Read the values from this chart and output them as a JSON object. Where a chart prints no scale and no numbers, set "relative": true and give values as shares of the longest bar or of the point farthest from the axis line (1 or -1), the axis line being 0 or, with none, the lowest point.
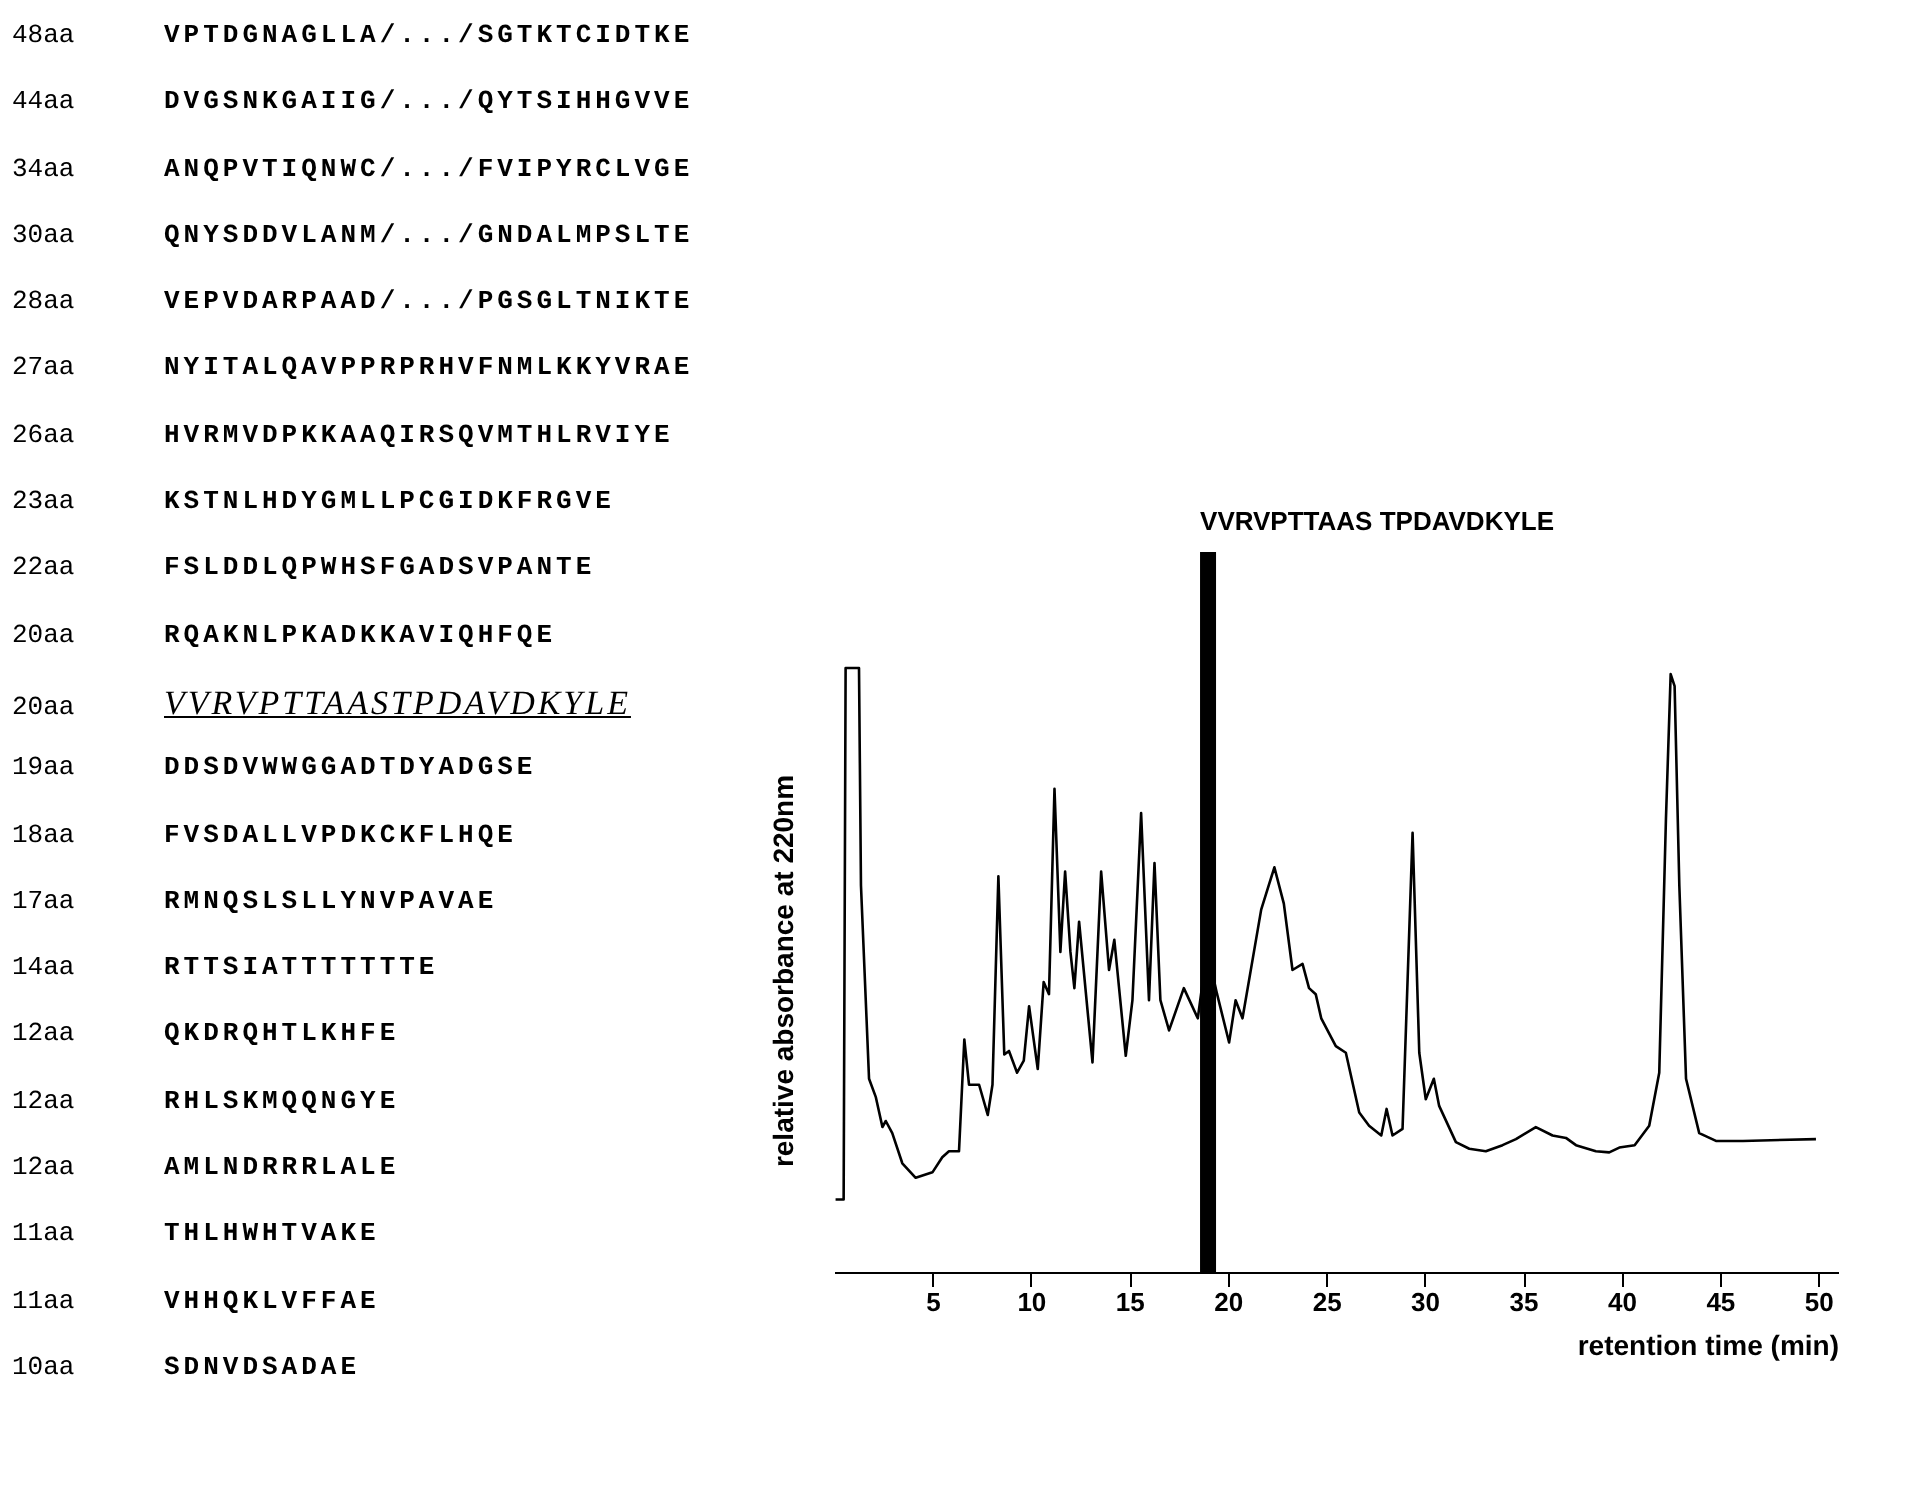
{
  "chart_data": {
    "type": "line",
    "relative": true,
    "xlabel": "retention time (min)",
    "ylabel": "relative absorbance at 220nm",
    "xlim": [
      0,
      51
    ],
    "xticks": [
      5,
      10,
      15,
      20,
      25,
      30,
      35,
      40,
      45,
      50
    ],
    "x": [
      0.08,
      0.49,
      0.59,
      1.27,
      1.37,
      1.78,
      2.12,
      2.46,
      2.63,
      2.96,
      3.47,
      4.15,
      5.0,
      5.5,
      5.84,
      6.35,
      6.62,
      6.86,
      7.37,
      7.81,
      8.05,
      8.35,
      8.65,
      8.89,
      9.3,
      9.64,
      9.91,
      10.35,
      10.65,
      10.92,
      11.2,
      11.5,
      11.74,
      12.01,
      12.21,
      12.45,
      13.13,
      13.57,
      13.97,
      14.24,
      14.82,
      15.16,
      15.6,
      16.0,
      16.28,
      16.58,
      17.02,
      17.77,
      18.48,
      18.95,
      19.46,
      20.07,
      20.4,
      20.75,
      21.7,
      22.37,
      22.85,
      23.29,
      23.8,
      24.13,
      24.47,
      24.75,
      25.49,
      26.0,
      26.68,
      27.18,
      27.8,
      28.07,
      28.37,
      28.88,
      29.39,
      29.73,
      30.06,
      30.47,
      30.74,
      31.59,
      32.27,
      33.11,
      33.96,
      34.64,
      35.65,
      36.5,
      37.18,
      37.69,
      38.7,
      39.38,
      39.89,
      40.67,
      41.41,
      41.92,
      42.26,
      42.5,
      42.7,
      42.94,
      43.28,
      43.95,
      44.8,
      46.17,
      49.88
    ],
    "series": [
      {
        "color": "#000000",
        "values": [
          0.12,
          0.12,
          1,
          1,
          0.64,
          0.32,
          0.29,
          0.24,
          0.25,
          0.23,
          0.18,
          0.156,
          0.165,
          0.19,
          0.2,
          0.2,
          0.385,
          0.31,
          0.31,
          0.26,
          0.31,
          0.655,
          0.36,
          0.366,
          0.33,
          0.35,
          0.44,
          0.336,
          0.48,
          0.46,
          0.8,
          0.53,
          0.663,
          0.53,
          0.47,
          0.58,
          0.347,
          0.663,
          0.5,
          0.55,
          0.358,
          0.45,
          0.76,
          0.45,
          0.677,
          0.45,
          0.4,
          0.47,
          0.42,
          0.534,
          0.46,
          0.38,
          0.45,
          0.42,
          0.6,
          0.67,
          0.61,
          0.5,
          0.51,
          0.47,
          0.46,
          0.42,
          0.374,
          0.363,
          0.264,
          0.242,
          0.226,
          0.27,
          0.226,
          0.237,
          0.727,
          0.363,
          0.286,
          0.32,
          0.275,
          0.215,
          0.204,
          0.2,
          0.21,
          0.22,
          0.24,
          0.226,
          0.222,
          0.21,
          0.2,
          0.198,
          0.206,
          0.21,
          0.242,
          0.33,
          0.75,
          0.99,
          0.97,
          0.64,
          0.32,
          0.23,
          0.217,
          0.217,
          0.22
        ]
      }
    ],
    "ref_lines": [
      {
        "axis": "x",
        "value": 19,
        "label": "VVRVPTTAAS TPDAVDKYLE",
        "color": "#000000"
      }
    ],
    "annotations": [
      "48aa VPTDGNAGLLA/.../SGTKTCIDTKE",
      "44aa DVGSNKGAIIG/.../QYTSIHHGVVE",
      "34aa ANQPVTIQNWC/.../FVIPYRCLVGE",
      "30aa QNYSDDVLANM/.../GNDALMPSLTE",
      "28aa VEPVDARPAAD/.../PGSGLTNIKTE",
      "27aa NYITALQAVPPRPRHVFNMLKKYVRAE",
      "26aa HVRMVDPKKAAQIRSQVMTHLRVIYE",
      "23aa KSTNLHDYGMLLPCGIDKFRGVE",
      "22aa FSLDDLQPWHSFGADSVPANTE",
      "20aa RQAKNLPKADKKAVIQHFQE",
      "20aa VVRVPTTAASTPDAVDKYLE",
      "19aa DDSDVWWGGADTDYADGSE",
      "18aa FVSDALLVPDKCKFLHQE",
      "17aa RMNQSLSLLYNVPAVAE",
      "14aa RTTSIATTTTTTTE",
      "12aa QKDRQHTLKHFE",
      "12aa RHLSKMQQNGYE",
      "12aa AMLNDRRRLALE",
      "11aa THLHWHTVAKE",
      "11aa VHHQKLVFFAE",
      "10aa SDNVDSADAE"
    ]
  }
}
